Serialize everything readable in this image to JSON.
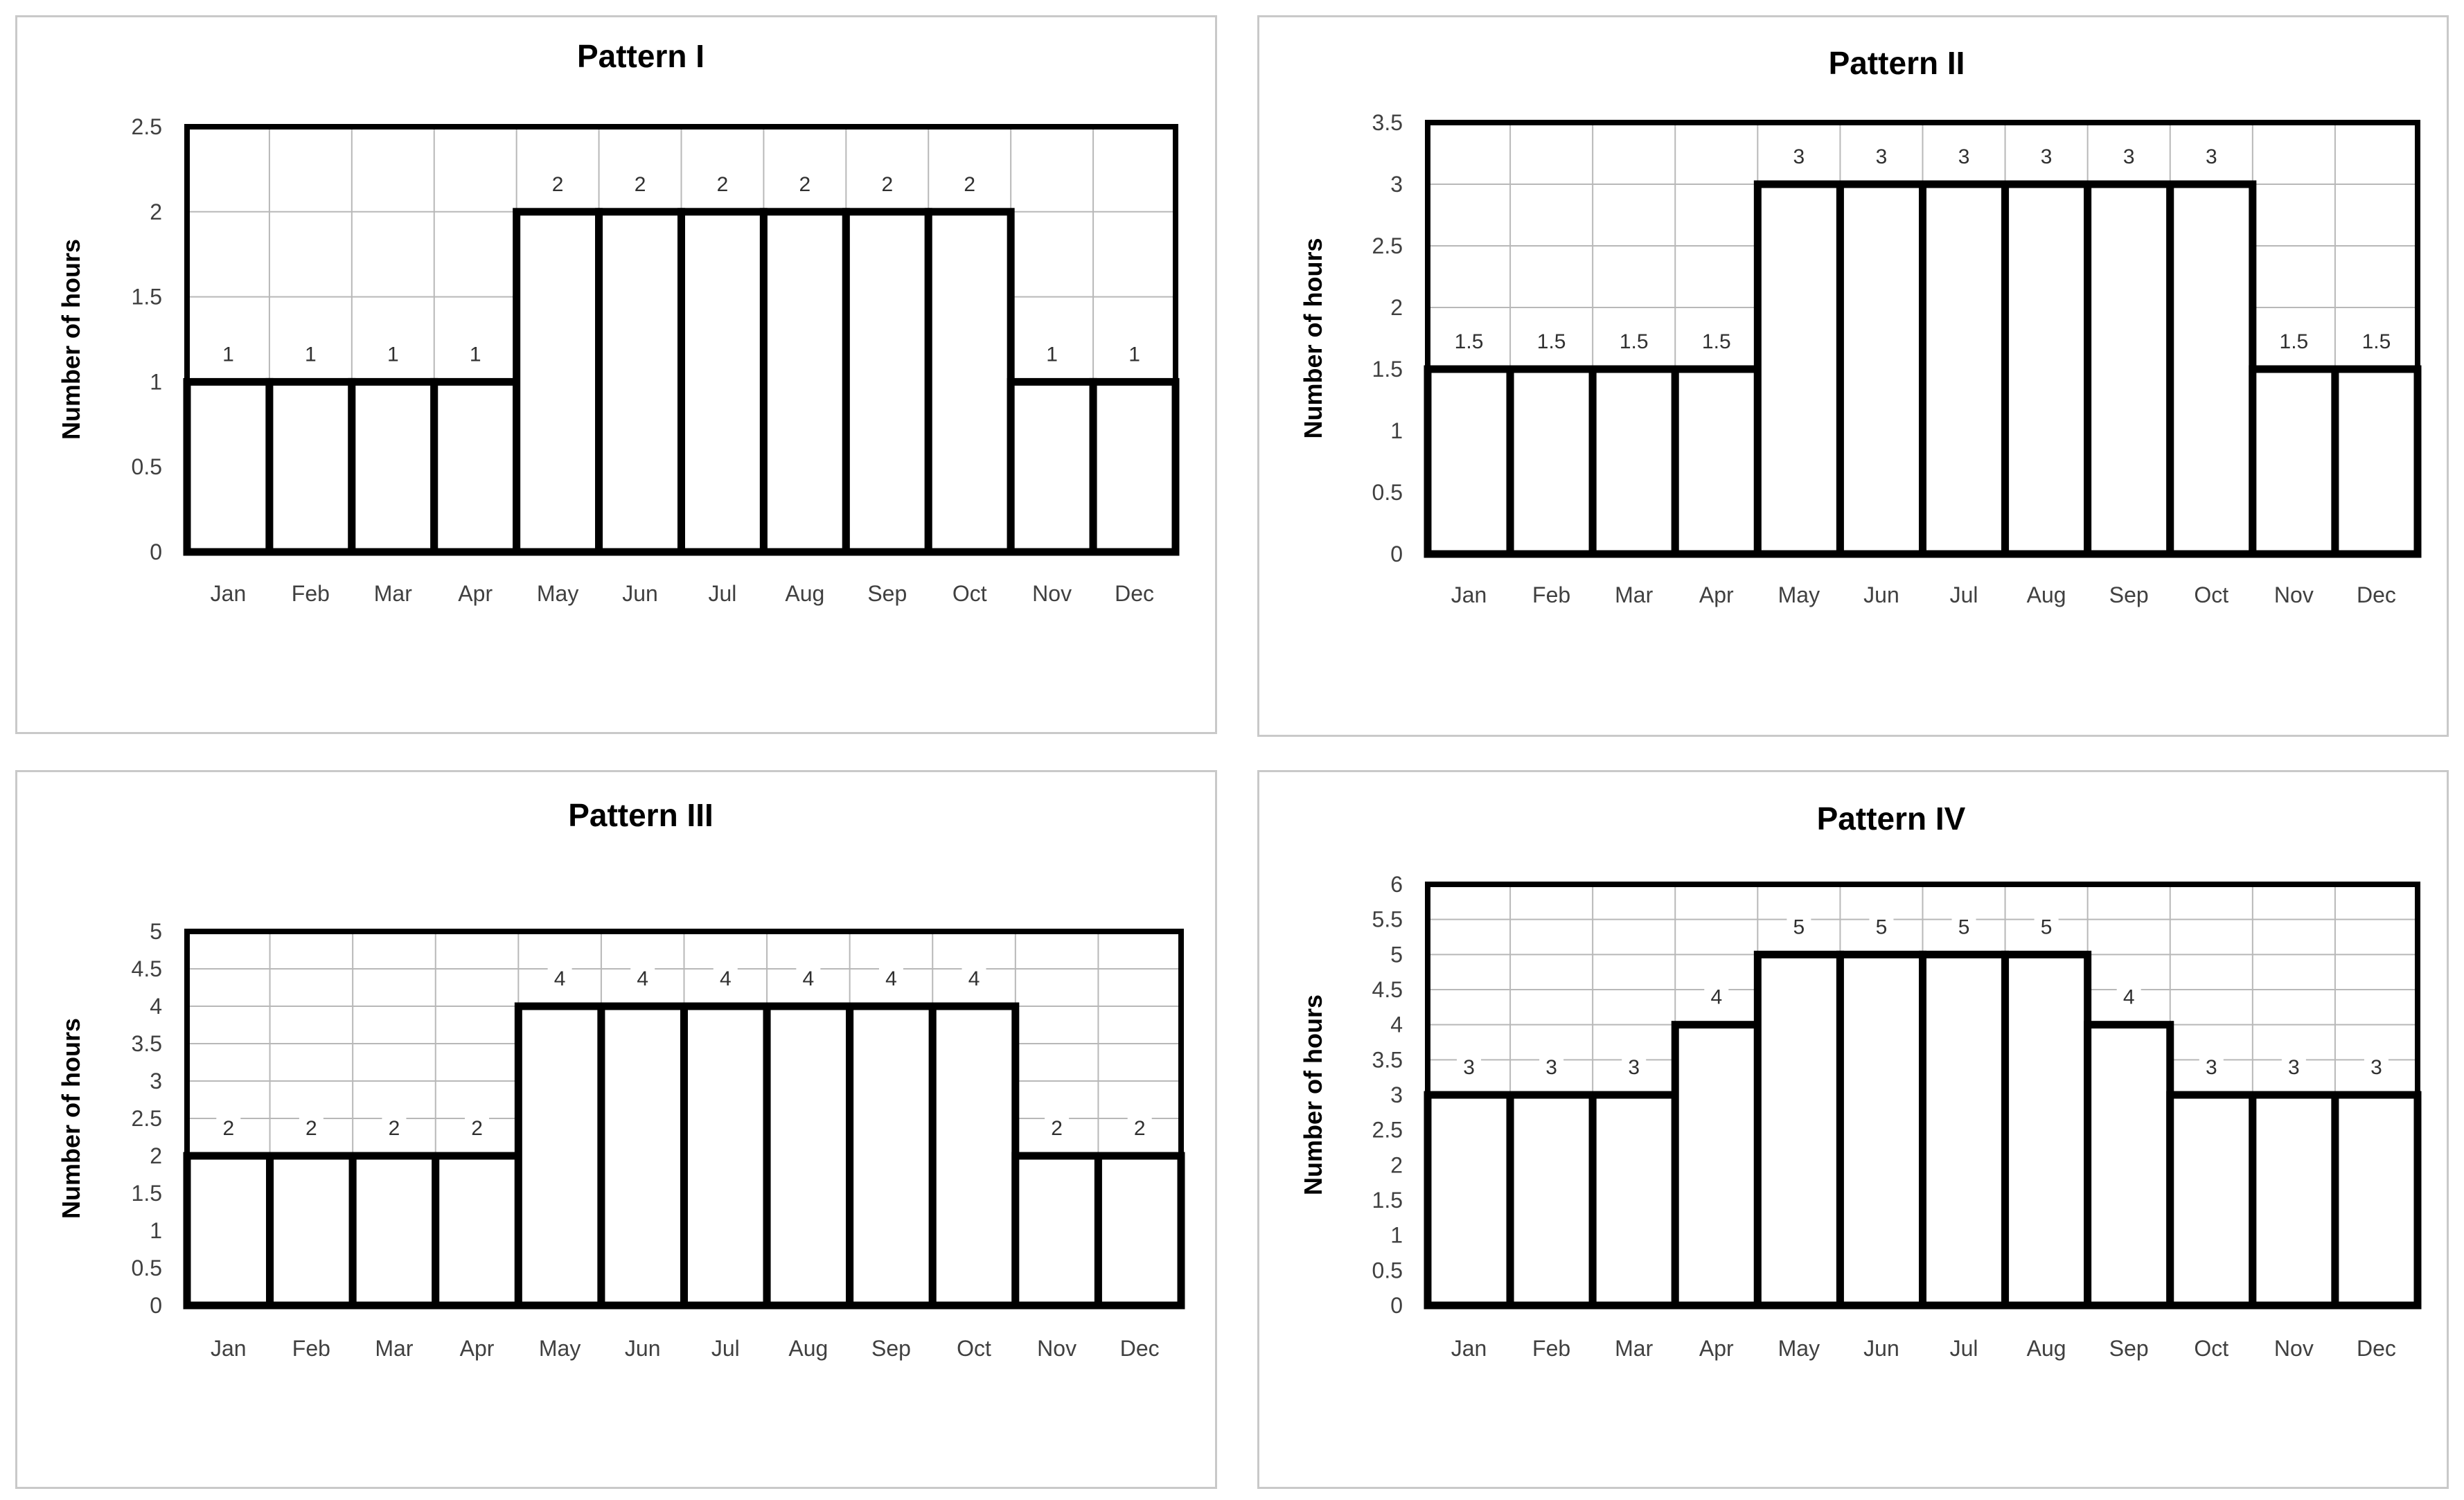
{
  "chart_data": [
    {
      "type": "bar",
      "title": "Pattern I",
      "ylabel": "Number of hours",
      "xlabel": "",
      "categories": [
        "Jan",
        "Feb",
        "Mar",
        "Apr",
        "May",
        "Jun",
        "Jul",
        "Aug",
        "Sep",
        "Oct",
        "Nov",
        "Dec"
      ],
      "values": [
        1,
        1,
        1,
        1,
        2,
        2,
        2,
        2,
        2,
        2,
        1,
        1
      ],
      "ylim": [
        0,
        2.5
      ],
      "yticks": [
        "0",
        "0.5",
        "1",
        "1.5",
        "2",
        "2.5"
      ],
      "data_labels": true,
      "grid": true,
      "legend": "none"
    },
    {
      "type": "bar",
      "title": "Pattern II",
      "ylabel": "Number of hours",
      "xlabel": "",
      "categories": [
        "Jan",
        "Feb",
        "Mar",
        "Apr",
        "May",
        "Jun",
        "Jul",
        "Aug",
        "Sep",
        "Oct",
        "Nov",
        "Dec"
      ],
      "values": [
        1.5,
        1.5,
        1.5,
        1.5,
        3,
        3,
        3,
        3,
        3,
        3,
        1.5,
        1.5
      ],
      "ylim": [
        0,
        3.5
      ],
      "yticks": [
        "0",
        "0.5",
        "1",
        "1.5",
        "2",
        "2.5",
        "3",
        "3.5"
      ],
      "data_labels": true,
      "grid": true,
      "legend": "none"
    },
    {
      "type": "bar",
      "title": "Pattern III",
      "ylabel": "Number of hours",
      "xlabel": "",
      "categories": [
        "Jan",
        "Feb",
        "Mar",
        "Apr",
        "May",
        "Jun",
        "Jul",
        "Aug",
        "Sep",
        "Oct",
        "Nov",
        "Dec"
      ],
      "values": [
        2,
        2,
        2,
        2,
        4,
        4,
        4,
        4,
        4,
        4,
        2,
        2
      ],
      "ylim": [
        0,
        5
      ],
      "yticks": [
        "0",
        "0.5",
        "1",
        "1.5",
        "2",
        "2.5",
        "3",
        "3.5",
        "4",
        "4.5",
        "5"
      ],
      "data_labels": true,
      "grid": true,
      "legend": "none"
    },
    {
      "type": "bar",
      "title": "Pattern IV",
      "ylabel": "Number of hours",
      "xlabel": "",
      "categories": [
        "Jan",
        "Feb",
        "Mar",
        "Apr",
        "May",
        "Jun",
        "Jul",
        "Aug",
        "Sep",
        "Oct",
        "Nov",
        "Dec"
      ],
      "values": [
        3,
        3,
        3,
        4,
        5,
        5,
        5,
        5,
        4,
        3,
        3,
        3
      ],
      "ylim": [
        0,
        6
      ],
      "yticks": [
        "0",
        "0.5",
        "1",
        "1.5",
        "2",
        "2.5",
        "3",
        "3.5",
        "4",
        "4.5",
        "5",
        "5.5",
        "6"
      ],
      "data_labels": true,
      "grid": true,
      "legend": "none"
    }
  ]
}
